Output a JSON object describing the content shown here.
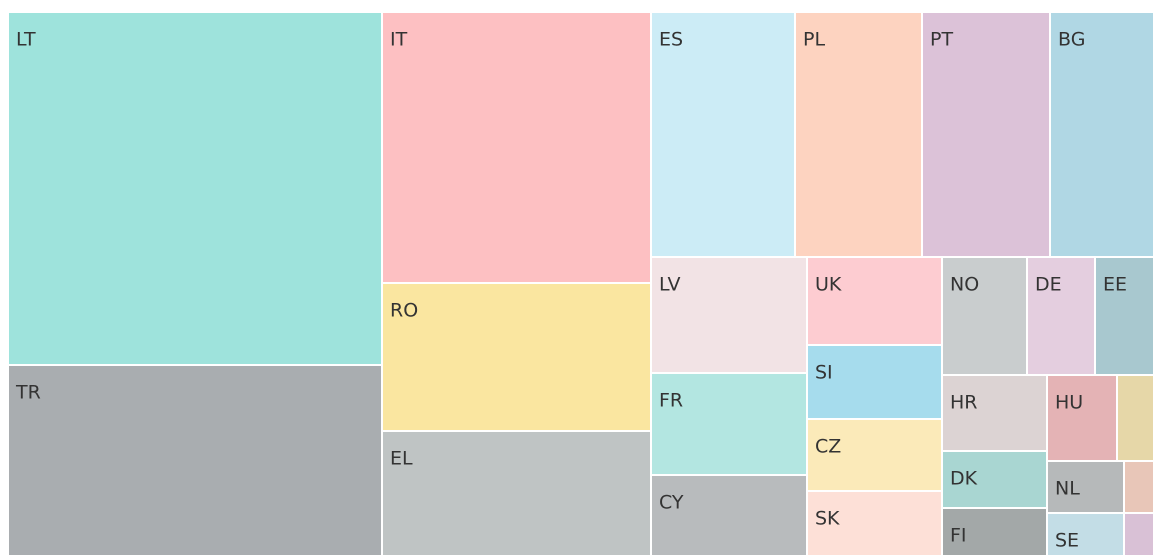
{
  "chart_data": {
    "type": "treemap",
    "categories": [
      "LT",
      "TR",
      "IT",
      "RO",
      "EL",
      "ES",
      "PL",
      "PT",
      "BG",
      "LV",
      "FR",
      "CY",
      "UK",
      "SI",
      "CZ",
      "SK",
      "NO",
      "DE",
      "EE",
      "HR",
      "DK",
      "FI",
      "HU",
      null,
      "NL",
      "SE",
      null,
      null
    ],
    "values": [
      132022,
      71434,
      72899,
      39812,
      33625,
      35280,
      31115,
      31360,
      25480,
      18096,
      15912,
      12636,
      11880,
      9990,
      9720,
      8775,
      10030,
      8024,
      6962,
      7980,
      5985,
      5040,
      6020,
      3182,
      4004,
      3311,
      1560,
      1290
    ],
    "colors": [
      "#9ee3dc",
      "#a9adb0",
      "#fdc0c2",
      "#fae6a0",
      "#bfc4c4",
      "#ccecf6",
      "#fdd3c0",
      "#dcc2d8",
      "#b0d7e4",
      "#f2e3e5",
      "#b3e6e1",
      "#b8bbbd",
      "#fdccd1",
      "#a6dced",
      "#fbeab9",
      "#fde0d7",
      "#c9cdce",
      "#e4cedf",
      "#a8c8cf",
      "#dcd3d3",
      "#a9d6d2",
      "#a3a8a8",
      "#e4b3b5",
      "#e6d7a8",
      "#b6b9ba",
      "#c3dde6",
      "#e8c6b8",
      "#d9c1d6"
    ]
  }
}
